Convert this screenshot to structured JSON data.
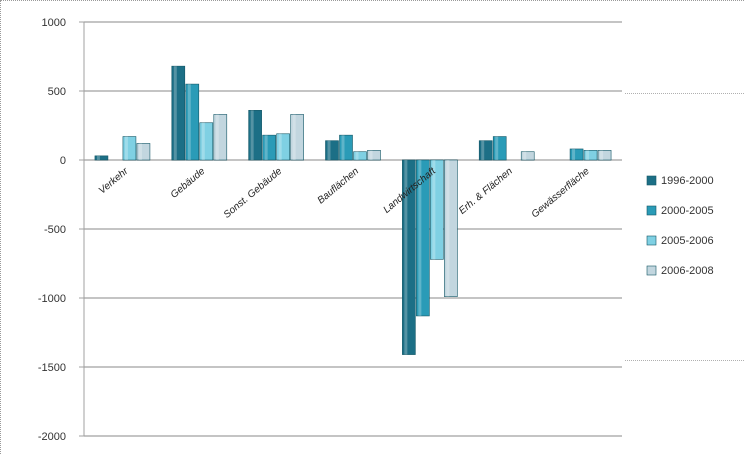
{
  "chart_data": {
    "type": "bar",
    "title": "",
    "xlabel": "",
    "ylabel": "",
    "ylim": [
      -2000,
      1000
    ],
    "yticks": [
      1000,
      500,
      0,
      -500,
      -1000,
      -1500,
      -2000
    ],
    "ytick_labels": [
      "1000",
      "500",
      "0",
      "-500",
      "-1000",
      "-1500",
      "-2000"
    ],
    "grid": true,
    "legend_position": "right",
    "categories": [
      "Verkehr",
      "Gebäude",
      "Sonst. Gebäude",
      "Bauflächen",
      "Landwirtschaft",
      "Erh. & Flächen",
      "Gewässerfläche"
    ],
    "series": [
      {
        "name": "1996-2000",
        "color": "#1c6f86",
        "values": [
          30,
          680,
          360,
          140,
          -1410,
          140,
          0
        ]
      },
      {
        "name": "2000-2005",
        "color": "#2a9bb7",
        "values": [
          0,
          550,
          180,
          180,
          -1130,
          170,
          80
        ]
      },
      {
        "name": "2005-2006",
        "color": "#7fd0e3",
        "values": [
          170,
          270,
          190,
          60,
          -720,
          0,
          70
        ]
      },
      {
        "name": "2006-2008",
        "color": "#c2d6df",
        "values": [
          120,
          330,
          330,
          70,
          -990,
          60,
          70
        ]
      }
    ]
  }
}
